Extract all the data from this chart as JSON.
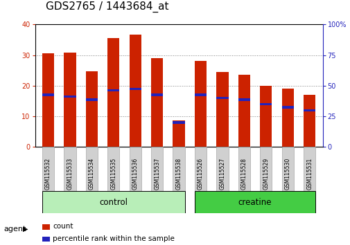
{
  "title": "GDS2765 / 1443684_at",
  "samples": [
    "GSM115532",
    "GSM115533",
    "GSM115534",
    "GSM115535",
    "GSM115536",
    "GSM115537",
    "GSM115538",
    "GSM115526",
    "GSM115527",
    "GSM115528",
    "GSM115529",
    "GSM115530",
    "GSM115531"
  ],
  "count_values": [
    30.5,
    30.8,
    24.7,
    35.6,
    36.8,
    29.0,
    8.7,
    28.0,
    24.6,
    23.6,
    20.0,
    19.0,
    17.0
  ],
  "percentile_values": [
    17.0,
    16.5,
    15.5,
    18.5,
    19.0,
    17.0,
    8.0,
    17.0,
    16.0,
    15.5,
    14.0,
    13.0,
    12.0
  ],
  "control_group_count": 7,
  "creatine_group_count": 6,
  "bar_color": "#cc2200",
  "blue_color": "#2222bb",
  "control_bg_light": "#d4f7d4",
  "control_bg": "#b8eeb8",
  "creatine_bg": "#44cc44",
  "sample_box_bg": "#d0d0d0",
  "ylim_left": [
    0,
    40
  ],
  "ylim_right": [
    0,
    100
  ],
  "yticks_left": [
    0,
    10,
    20,
    30,
    40
  ],
  "yticks_right": [
    0,
    25,
    50,
    75,
    100
  ],
  "bar_width": 0.55,
  "title_fontsize": 11,
  "tick_fontsize": 7,
  "sample_fontsize": 5.5,
  "group_label_fontsize": 8.5,
  "legend_fontsize": 7.5,
  "agent_fontsize": 8
}
